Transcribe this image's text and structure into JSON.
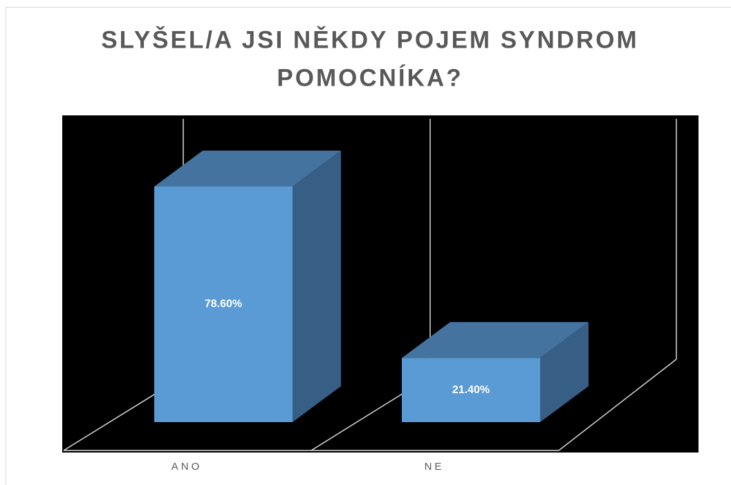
{
  "chart_data": {
    "type": "bar3d",
    "title": [
      "SLYŠEL/A JSI NĚKDY POJEM SYNDROM",
      "POMOCNÍKA?"
    ],
    "categories": [
      "ANO",
      "NE"
    ],
    "values": [
      78.6,
      21.4
    ],
    "value_labels": [
      "78.60%",
      "21.40%"
    ],
    "color": "#5b9bd5"
  }
}
